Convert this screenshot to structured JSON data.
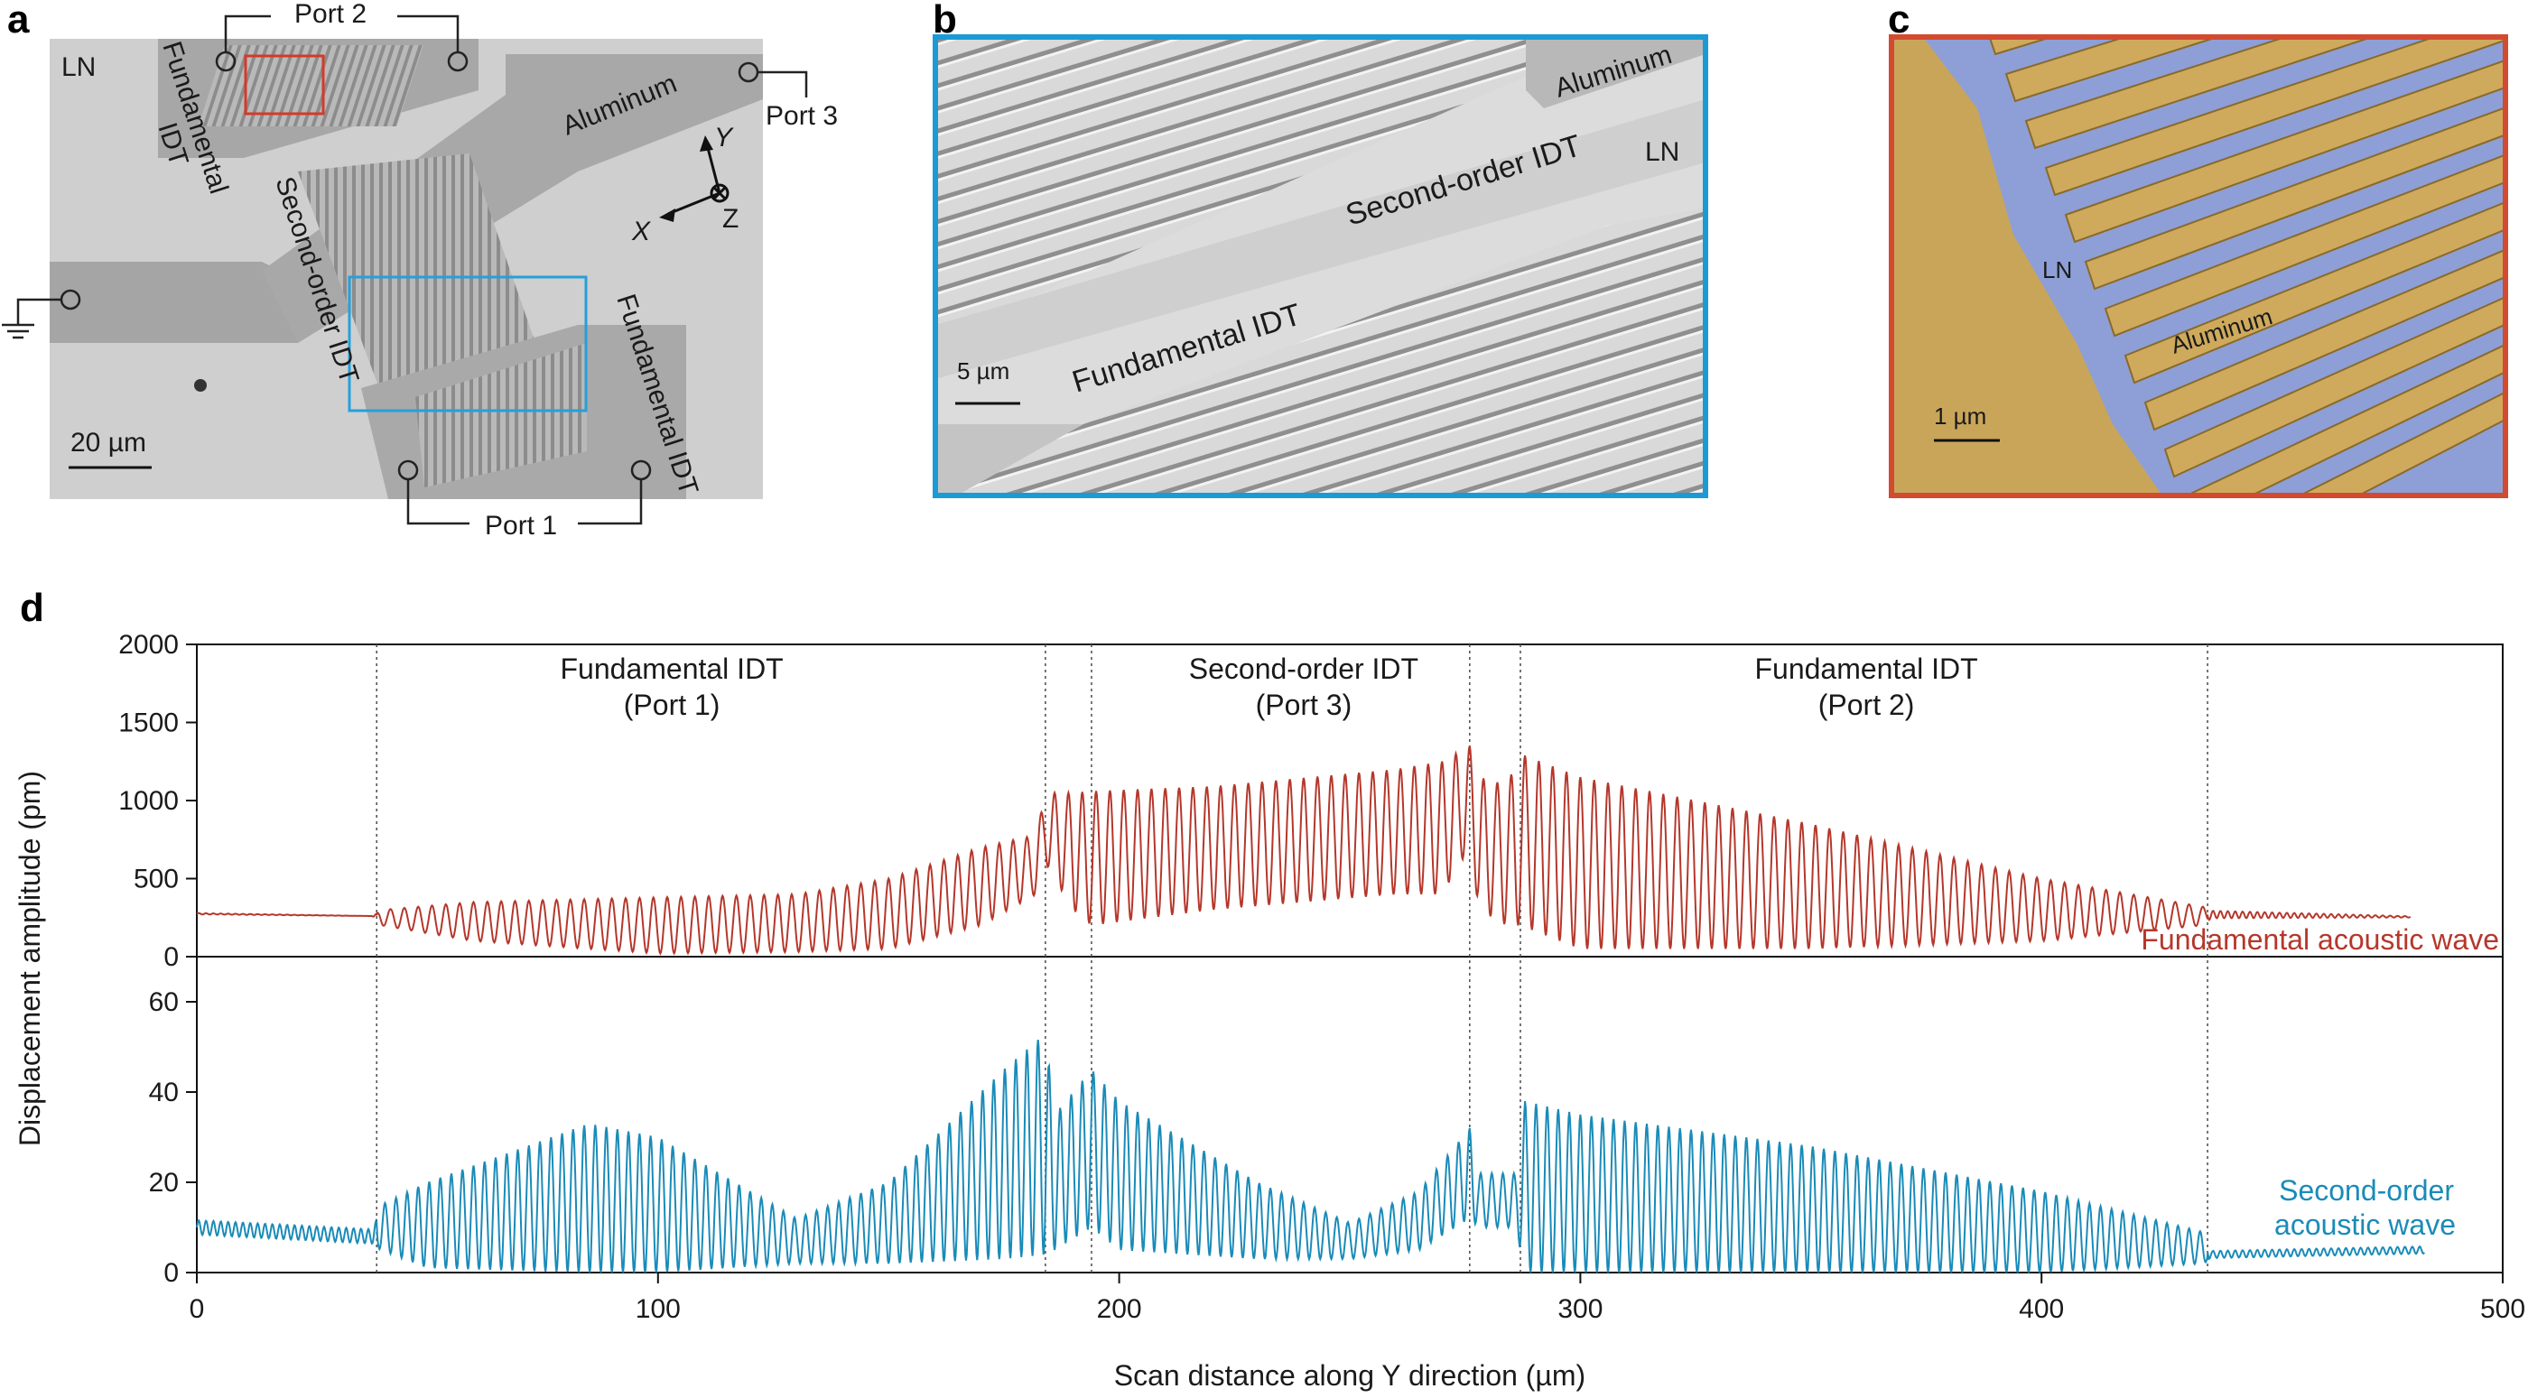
{
  "panels": {
    "a": {
      "letter": "a",
      "labels": {
        "ln": "LN",
        "port2": "Port 2",
        "port3": "Port 3",
        "port1": "Port 1",
        "fund_idt_top_1": "Fundamental",
        "fund_idt_top_2": "IDT",
        "second_idt": "Second-order IDT",
        "fund_idt_right": "Fundamental IDT",
        "aluminum": "Aluminum",
        "axis_y": "Y",
        "axis_x": "X",
        "axis_z": "Z",
        "scale": "20 µm"
      }
    },
    "b": {
      "letter": "b",
      "labels": {
        "aluminum": "Aluminum",
        "ln": "LN",
        "second_idt": "Second-order IDT",
        "fund_idt": "Fundamental IDT",
        "scale": "5 µm"
      }
    },
    "c": {
      "letter": "c",
      "labels": {
        "ln": "LN",
        "aluminum": "Aluminum",
        "scale": "1 µm"
      }
    },
    "d": {
      "letter": "d"
    }
  },
  "colors": {
    "fundamental": "#b5372b",
    "second_order": "#1a8bb8",
    "sem_gray": "#9a9a9a",
    "frame_b": "#1c9ad6",
    "frame_c": "#d24a2f",
    "aluminum_gold": "#cfaa5c",
    "ln_blue": "#8d9fd6"
  },
  "chart_data": {
    "type": "line",
    "xlabel": "Scan distance along Y direction (µm)",
    "ylabel": "Displacement amplitude (pm)",
    "xlim": [
      0,
      500
    ],
    "xticks": [
      "0",
      "100",
      "200",
      "300",
      "400",
      "500"
    ],
    "top_panel": {
      "ylim": [
        0,
        2000
      ],
      "yticks": [
        "0",
        "500",
        "1000",
        "1500",
        "2000"
      ],
      "series_name": "Fundamental acoustic wave",
      "envelope": {
        "x": [
          0,
          38,
          40,
          60,
          100,
          130,
          150,
          170,
          182,
          184,
          190,
          194,
          220,
          260,
          270,
          276,
          278,
          284,
          287,
          300,
          350,
          400,
          435,
          437,
          480
        ],
        "upper": [
          280,
          260,
          300,
          350,
          380,
          400,
          500,
          700,
          780,
          1050,
          1050,
          1060,
          1090,
          1200,
          1250,
          1350,
          1150,
          1100,
          1300,
          1150,
          850,
          500,
          320,
          300,
          260
        ],
        "lower": [
          270,
          260,
          200,
          100,
          20,
          30,
          50,
          200,
          400,
          600,
          300,
          200,
          300,
          400,
          400,
          700,
          300,
          200,
          200,
          50,
          50,
          100,
          200,
          240,
          250
        ]
      }
    },
    "bottom_panel": {
      "ylim": [
        0,
        70
      ],
      "yticks": [
        "0",
        "20",
        "40",
        "60"
      ],
      "series_name_1": "Second-order",
      "series_name_2": "acoustic wave",
      "envelope": {
        "x": [
          0,
          38,
          40,
          50,
          85,
          100,
          130,
          150,
          175,
          184,
          186,
          194,
          200,
          230,
          250,
          265,
          276,
          278,
          286,
          288,
          300,
          350,
          400,
          435,
          437,
          483
        ],
        "upper": [
          12,
          10,
          15,
          20,
          33,
          30,
          12,
          20,
          45,
          53,
          35,
          45,
          38,
          20,
          11,
          18,
          32,
          22,
          22,
          38,
          35,
          28,
          18,
          9,
          5,
          6
        ],
        "lower": [
          8,
          6,
          5,
          1,
          0,
          0,
          2,
          2,
          3,
          4,
          5,
          10,
          5,
          3,
          3,
          5,
          12,
          10,
          10,
          0,
          0,
          0,
          0,
          2,
          3,
          4
        ]
      }
    },
    "regions": [
      {
        "title": "Fundamental IDT",
        "port": "(Port 1)",
        "x_center": 103
      },
      {
        "title": "Second-order IDT",
        "port": "(Port 3)",
        "x_center": 240
      },
      {
        "title": "Fundamental IDT",
        "port": "(Port 2)",
        "x_center": 362
      }
    ],
    "boundaries": [
      39,
      184,
      194,
      276,
      287,
      436
    ]
  }
}
